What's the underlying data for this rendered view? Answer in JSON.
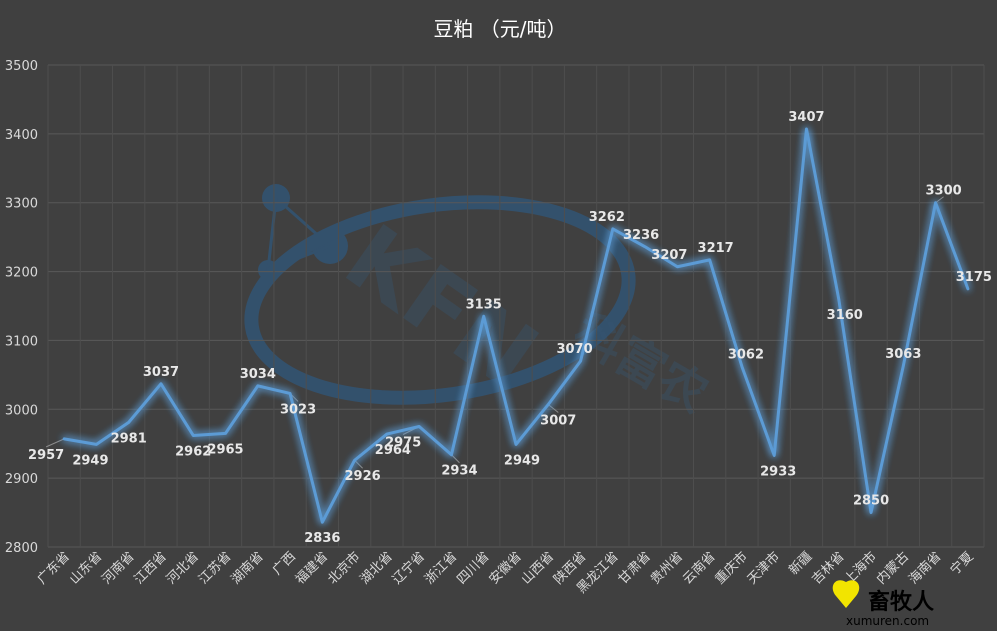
{
  "chart_data": {
    "type": "line",
    "title": "豆粕   （元/吨）",
    "xlabel": "",
    "ylabel": "",
    "ylim": [
      2800,
      3500
    ],
    "yticks": [
      2800,
      2900,
      3000,
      3100,
      3200,
      3300,
      3400,
      3500
    ],
    "grid": true,
    "legend": "none",
    "categories": [
      "广东省",
      "山东省",
      "河南省",
      "江西省",
      "河北省",
      "江苏省",
      "湖南省",
      "广西",
      "福建省",
      "北京市",
      "湖北省",
      "辽宁省",
      "浙江省",
      "四川省",
      "安徽省",
      "山西省",
      "陕西省",
      "黑龙江省",
      "甘肃省",
      "贵州省",
      "云南省",
      "重庆市",
      "天津市",
      "新疆",
      "吉林省",
      "上海市",
      "内蒙古",
      "海南省",
      "宁夏"
    ],
    "series": [
      {
        "values": [
          2957,
          2949,
          2981,
          3037,
          2962,
          2965,
          3034,
          3023,
          2836,
          2926,
          2964,
          2975,
          2934,
          3135,
          2949,
          3007,
          3070,
          3262,
          3236,
          3207,
          3217,
          3062,
          2933,
          3407,
          3160,
          2850,
          3063,
          3300,
          3175
        ]
      }
    ],
    "colors": {
      "line": "#5b9bd5",
      "background": "#404040",
      "grid": "#595959"
    }
  },
  "watermark": {
    "text": "KFN",
    "cn_text": "科富农",
    "color": "#2e6aa0"
  },
  "logo": {
    "text": "畜牧人",
    "url": "xumuren.com"
  }
}
